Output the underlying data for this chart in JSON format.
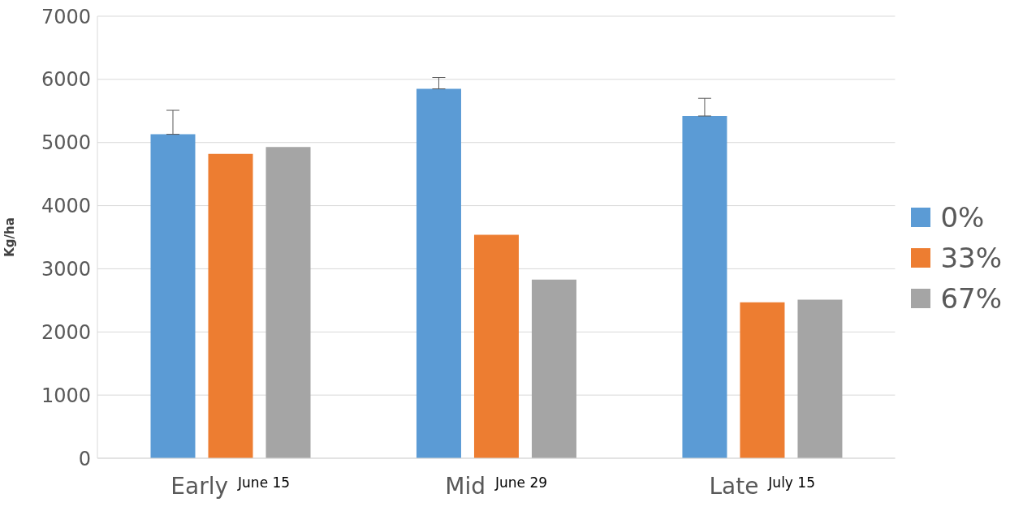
{
  "chart_data": {
    "type": "bar",
    "ylabel": "Kg/ha",
    "categories": [
      "Early",
      "Mid",
      "Late"
    ],
    "annotations": [
      "June 15",
      "June 29",
      "July 15"
    ],
    "series": [
      {
        "name": "0%",
        "color": "#5b9bd5",
        "values": [
          5130,
          5850,
          5420
        ],
        "errors": [
          [
            5130,
            5510
          ],
          [
            5850,
            6030
          ],
          [
            5420,
            5700
          ]
        ]
      },
      {
        "name": "33%",
        "color": "#ed7d31",
        "values": [
          4820,
          3540,
          2470
        ]
      },
      {
        "name": "67%",
        "color": "#a5a5a5",
        "values": [
          4930,
          2830,
          2510
        ]
      }
    ],
    "ylim": [
      0,
      7000
    ],
    "yticks": [
      0,
      1000,
      2000,
      3000,
      4000,
      5000,
      6000,
      7000
    ],
    "grid": "y",
    "legend": "right"
  }
}
